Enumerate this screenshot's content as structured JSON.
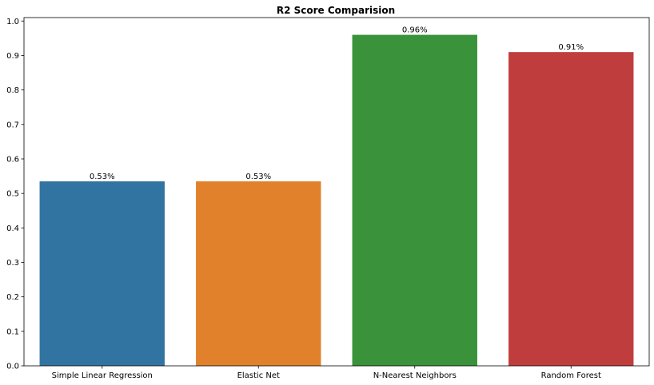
{
  "chart_data": {
    "type": "bar",
    "title": "R2 Score Comparision",
    "xlabel": "",
    "ylabel": "",
    "categories": [
      "Simple Linear Regression",
      "Elastic Net",
      "N-Nearest Neighbors",
      "Random Forest"
    ],
    "values": [
      0.535,
      0.535,
      0.96,
      0.91
    ],
    "data_labels": [
      "0.53%",
      "0.53%",
      "0.96%",
      "0.91%"
    ],
    "colors": [
      "#3274a1",
      "#e1812c",
      "#3a923a",
      "#c03d3e"
    ],
    "ylim": [
      0,
      1.01
    ],
    "yticks": [
      0.0,
      0.1,
      0.2,
      0.3,
      0.4,
      0.5,
      0.6,
      0.7,
      0.8,
      0.9,
      1.0
    ],
    "ytick_labels": [
      "0.0",
      "0.1",
      "0.2",
      "0.3",
      "0.4",
      "0.5",
      "0.6",
      "0.7",
      "0.8",
      "0.9",
      "1.0"
    ],
    "grid": false,
    "legend": "none"
  }
}
